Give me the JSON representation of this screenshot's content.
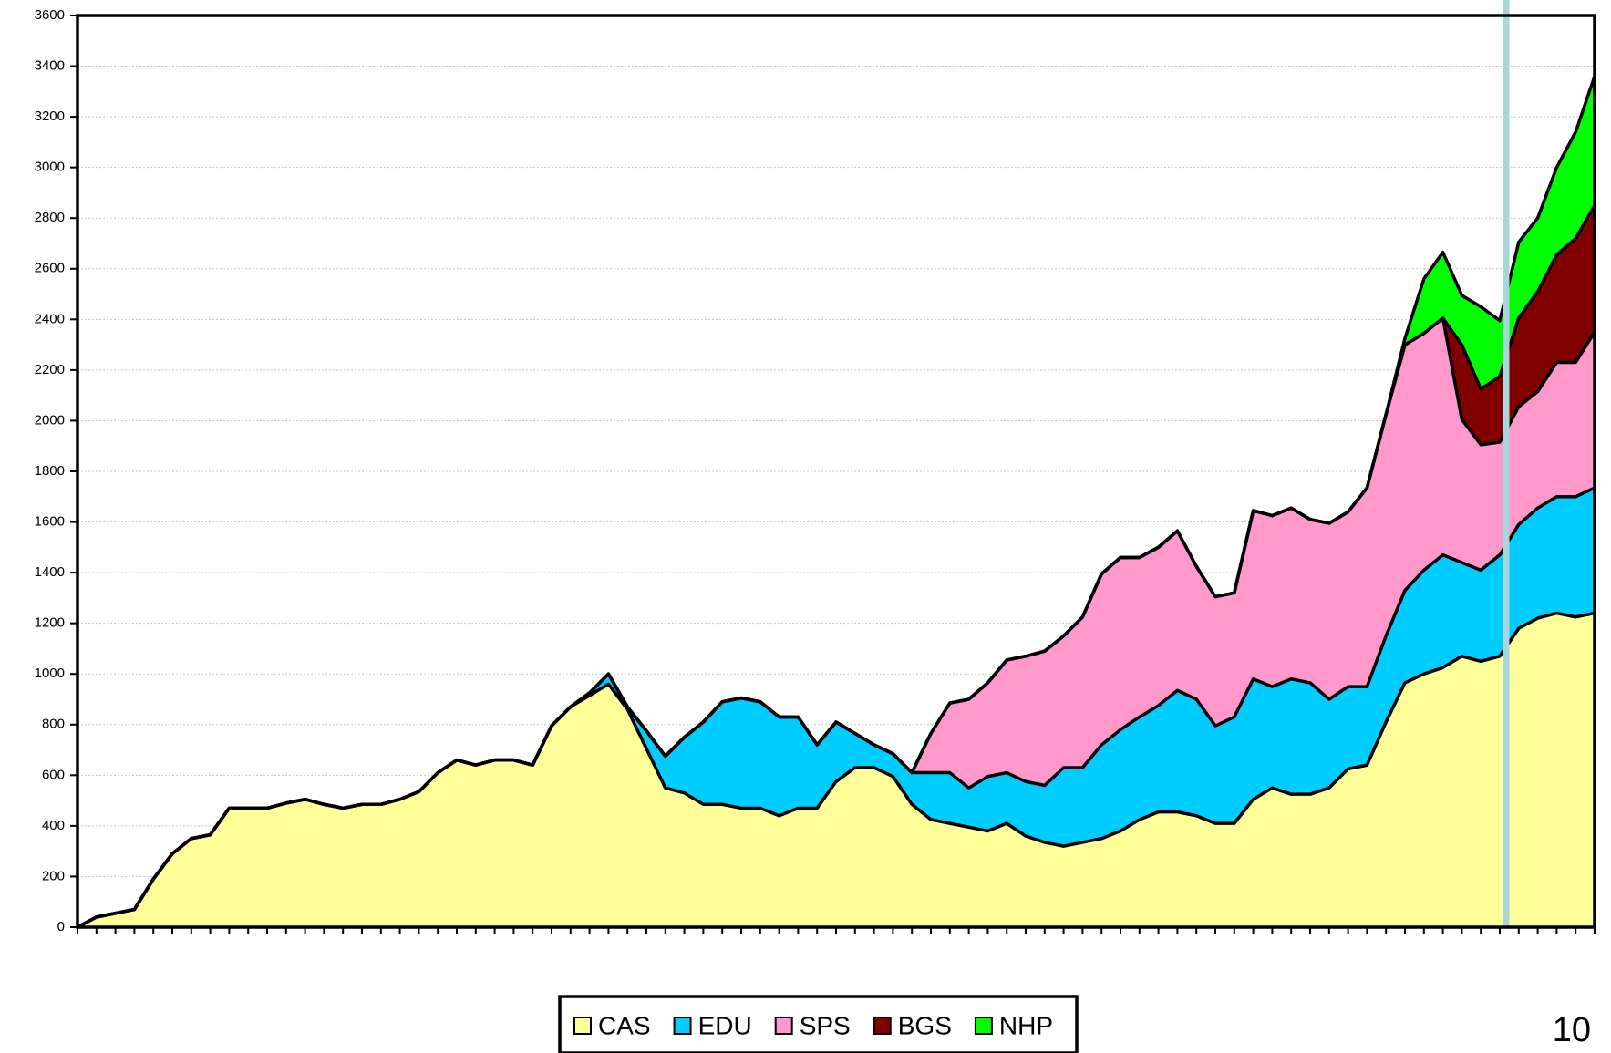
{
  "chart_data": {
    "type": "stacked_area",
    "categories": [
      null,
      null,
      null,
      null,
      null,
      null,
      null,
      null,
      null,
      null,
      null,
      null,
      null,
      null,
      null,
      null,
      null,
      null,
      null,
      null,
      null,
      null,
      null,
      null,
      null,
      null,
      null,
      null,
      null,
      null,
      null,
      null,
      null,
      null,
      null,
      null,
      null,
      null,
      null,
      null,
      null,
      null,
      null,
      null,
      null,
      null,
      null,
      null,
      null,
      null,
      null,
      null,
      null,
      null,
      null,
      null,
      null,
      null,
      null,
      null,
      null,
      null,
      null,
      null,
      null,
      null,
      null,
      null,
      null,
      null,
      null,
      null,
      null,
      null,
      null,
      null,
      null,
      null,
      null,
      null,
      null
    ],
    "series": [
      {
        "name": "CAS",
        "color": "#ffff99",
        "values": [
          0,
          40,
          55,
          70,
          190,
          290,
          350,
          365,
          470,
          470,
          470,
          490,
          505,
          485,
          470,
          485,
          485,
          505,
          535,
          610,
          660,
          640,
          660,
          660,
          640,
          795,
          870,
          915,
          960,
          860,
          705,
          550,
          530,
          485,
          485,
          470,
          470,
          440,
          470,
          470,
          575,
          630,
          630,
          595,
          485,
          425,
          410,
          395,
          380,
          410,
          360,
          335,
          320,
          335,
          350,
          380,
          425,
          455,
          455,
          440,
          410,
          410,
          505,
          550,
          525,
          525,
          550,
          625,
          640,
          810,
          965,
          1000,
          1025,
          1070,
          1050,
          1070,
          1180,
          1220,
          1240,
          1225,
          1240
        ]
      },
      {
        "name": "EDU",
        "color": "#00ccff",
        "values": [
          0,
          0,
          0,
          0,
          0,
          0,
          0,
          0,
          0,
          0,
          0,
          0,
          0,
          0,
          0,
          0,
          0,
          0,
          0,
          0,
          0,
          0,
          0,
          0,
          0,
          0,
          0,
          10,
          40,
          10,
          70,
          125,
          220,
          325,
          405,
          435,
          420,
          390,
          360,
          250,
          235,
          135,
          90,
          90,
          125,
          185,
          200,
          155,
          215,
          200,
          215,
          225,
          310,
          295,
          370,
          400,
          405,
          420,
          480,
          460,
          385,
          420,
          475,
          400,
          455,
          440,
          350,
          325,
          310,
          340,
          365,
          410,
          445,
          370,
          360,
          400,
          410,
          435,
          460,
          475,
          495
        ]
      },
      {
        "name": "SPS",
        "color": "#ff99cc",
        "values": [
          0,
          0,
          0,
          0,
          0,
          0,
          0,
          0,
          0,
          0,
          0,
          0,
          0,
          0,
          0,
          0,
          0,
          0,
          0,
          0,
          0,
          0,
          0,
          0,
          0,
          0,
          0,
          0,
          0,
          0,
          0,
          0,
          0,
          0,
          0,
          0,
          0,
          0,
          0,
          0,
          0,
          0,
          0,
          0,
          0,
          155,
          275,
          350,
          370,
          445,
          495,
          530,
          520,
          595,
          675,
          680,
          630,
          625,
          630,
          525,
          510,
          490,
          665,
          675,
          675,
          645,
          695,
          690,
          785,
          875,
          970,
          935,
          935,
          565,
          495,
          445,
          465,
          460,
          530,
          530,
          615
        ]
      },
      {
        "name": "BGS",
        "color": "#800000",
        "values": [
          0,
          0,
          0,
          0,
          0,
          0,
          0,
          0,
          0,
          0,
          0,
          0,
          0,
          0,
          0,
          0,
          0,
          0,
          0,
          0,
          0,
          0,
          0,
          0,
          0,
          0,
          0,
          0,
          0,
          0,
          0,
          0,
          0,
          0,
          0,
          0,
          0,
          0,
          0,
          0,
          0,
          0,
          0,
          0,
          0,
          0,
          0,
          0,
          0,
          0,
          0,
          0,
          0,
          0,
          0,
          0,
          0,
          0,
          0,
          0,
          0,
          0,
          0,
          0,
          0,
          0,
          0,
          0,
          0,
          0,
          0,
          0,
          0,
          295,
          220,
          260,
          350,
          395,
          425,
          490,
          500
        ]
      },
      {
        "name": "NHP",
        "color": "#00ff00",
        "values": [
          0,
          0,
          0,
          0,
          0,
          0,
          0,
          0,
          0,
          0,
          0,
          0,
          0,
          0,
          0,
          0,
          0,
          0,
          0,
          0,
          0,
          0,
          0,
          0,
          0,
          0,
          0,
          0,
          0,
          0,
          0,
          0,
          0,
          0,
          0,
          0,
          0,
          0,
          0,
          0,
          0,
          0,
          0,
          0,
          0,
          0,
          0,
          0,
          0,
          0,
          0,
          0,
          0,
          0,
          0,
          0,
          0,
          0,
          0,
          0,
          0,
          0,
          0,
          0,
          0,
          0,
          0,
          0,
          0,
          0,
          25,
          215,
          260,
          195,
          325,
          220,
          300,
          290,
          345,
          420,
          510
        ]
      }
    ],
    "ylim": [
      0,
      3600
    ],
    "yticks": [
      0,
      200,
      400,
      600,
      800,
      1000,
      1200,
      1400,
      1600,
      1800,
      2000,
      2200,
      2400,
      2600,
      2800,
      3000,
      3200,
      3400,
      3600
    ],
    "grid": true,
    "legend": "bottom"
  },
  "page_number": "10"
}
